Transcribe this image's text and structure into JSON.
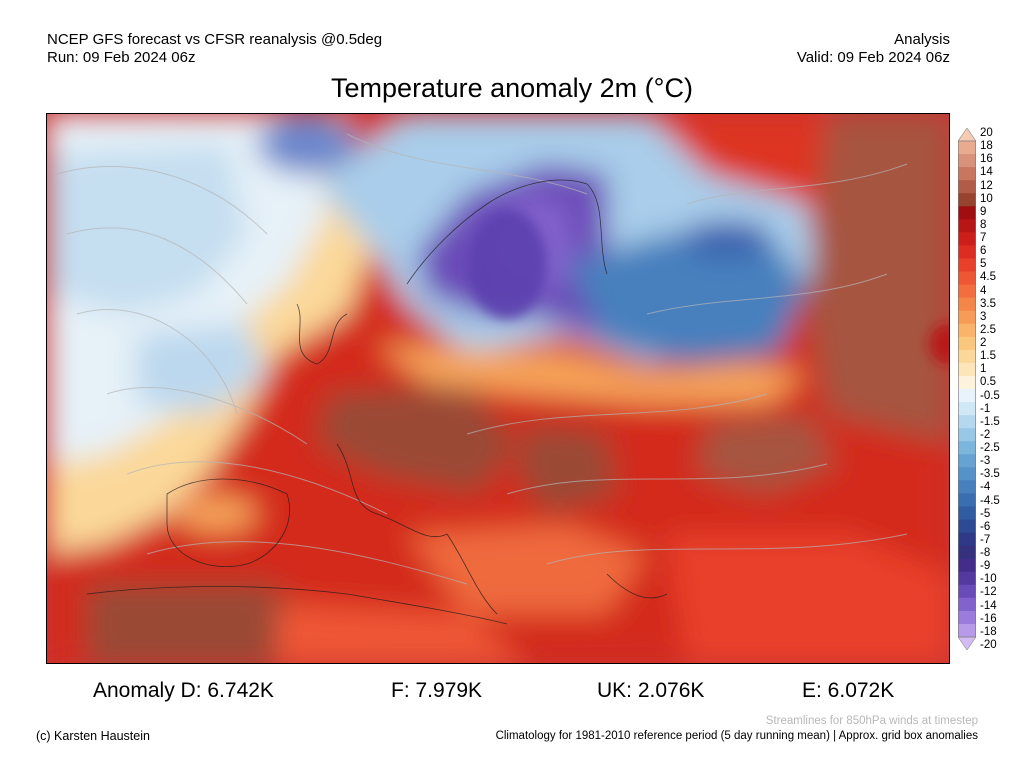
{
  "header": {
    "model_line": "NCEP GFS forecast vs CFSR reanalysis @0.5deg",
    "run_line": "Run: 09 Feb 2024 06z",
    "type_line": "Analysis",
    "valid_line": "Valid: 09 Feb 2024 06z"
  },
  "title": "Temperature anomaly 2m (°C)",
  "colorbar": {
    "labels": [
      "20",
      "18",
      "16",
      "14",
      "12",
      "10",
      "9",
      "8",
      "7",
      "6",
      "5",
      "4.5",
      "4",
      "3.5",
      "3",
      "2.5",
      "2",
      "1.5",
      "1",
      "0.5",
      "-0.5",
      "-1",
      "-1.5",
      "-2",
      "-2.5",
      "-3",
      "-3.5",
      "-4",
      "-4.5",
      "-5",
      "-6",
      "-7",
      "-8",
      "-9",
      "-10",
      "-12",
      "-14",
      "-16",
      "-18",
      "-20"
    ],
    "colors": [
      "#f6cbb3",
      "#e8ab8f",
      "#d8917a",
      "#c8765f",
      "#b05c48",
      "#96442f",
      "#a00e12",
      "#b81616",
      "#cc1f1c",
      "#dd2d22",
      "#e8402b",
      "#ee5734",
      "#f26e3e",
      "#f5864a",
      "#f79c58",
      "#f9b36a",
      "#fac77f",
      "#fbd89a",
      "#fce6b9",
      "#fdf3dc",
      "#e8f3fb",
      "#d0e7f5",
      "#b5d8ee",
      "#99c8e6",
      "#7db6dd",
      "#66a3d3",
      "#5592c9",
      "#4780bd",
      "#3b6eb0",
      "#325ca2",
      "#2d4b94",
      "#2e3a87",
      "#36317e",
      "#432c8a",
      "#5439a0",
      "#6a4cb8",
      "#8262cc",
      "#9b7bdb",
      "#b79ae8",
      "#d2bcf3"
    ]
  },
  "anomalies": [
    {
      "label": "Anomaly D: 6.742K"
    },
    {
      "label": "F: 7.979K"
    },
    {
      "label": "UK: 2.076K"
    },
    {
      "label": "E: 6.072K"
    }
  ],
  "notes": {
    "streamlines": "Streamlines for 850hPa winds at timestep",
    "copyright": "(c) Karsten Haustein",
    "climatology": "Climatology for 1981-2010 reference period (5 day running mean) | Approx. grid box anomalies"
  }
}
